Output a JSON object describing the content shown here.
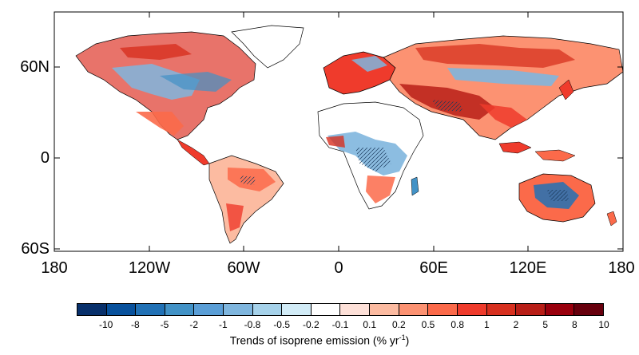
{
  "map": {
    "y_tick_labels": [
      "60N",
      "0",
      "60S"
    ],
    "x_tick_labels": [
      "180",
      "120W",
      "60W",
      "0",
      "60E",
      "120E",
      "180"
    ]
  },
  "colorbar": {
    "colors": [
      "#08306b",
      "#08519c",
      "#2171b5",
      "#4292c6",
      "#5a9ed6",
      "#7fb6de",
      "#a6d2ea",
      "#d2ecf7",
      "#ffffff",
      "#fde0d8",
      "#fcbba1",
      "#fc9272",
      "#fb6a4a",
      "#ef3b2c",
      "#d7301f",
      "#b81e17",
      "#99000d",
      "#67000d"
    ],
    "labels": [
      "-10",
      "-8",
      "-5",
      "-2",
      "-1",
      "-0.8",
      "-0.5",
      "-0.2",
      "-0.1",
      "0.1",
      "0.2",
      "0.5",
      "0.8",
      "1",
      "2",
      "5",
      "8",
      "10"
    ],
    "title_main": "Trends of isoprene emission (% yr",
    "title_sup": "-1",
    "title_close": ")"
  }
}
